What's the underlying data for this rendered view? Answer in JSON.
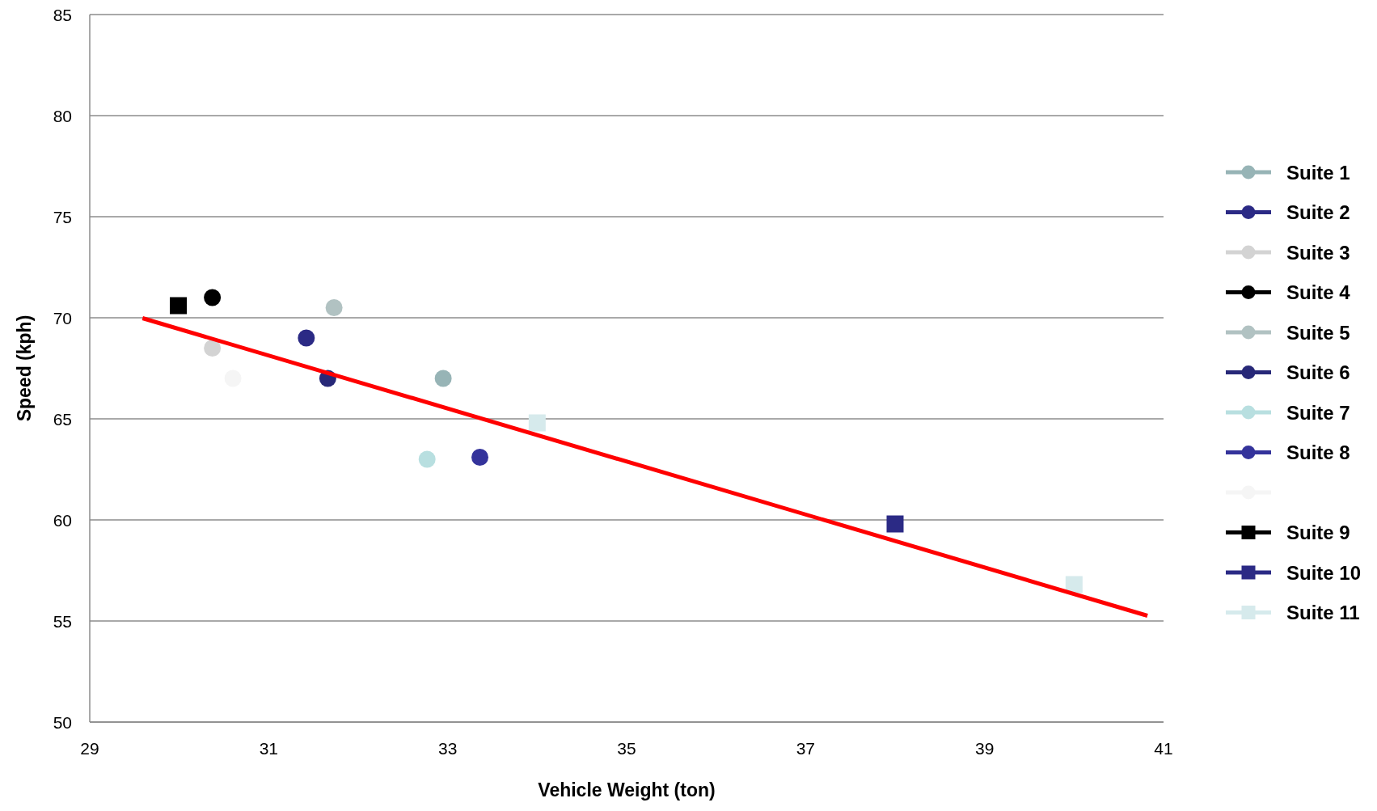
{
  "chart_data": {
    "type": "scatter",
    "xlabel": "Vehicle Weight (ton)",
    "ylabel": "Speed (kph)",
    "xlim": [
      29,
      41
    ],
    "xticks": [
      29,
      31,
      33,
      35,
      37,
      39,
      41
    ],
    "ylim": [
      50,
      85
    ],
    "yticks": [
      50,
      55,
      60,
      65,
      70,
      75,
      80,
      85
    ],
    "grid": "y",
    "legend": "right",
    "series": [
      {
        "name": "Suite 1",
        "color": "#97b4b6",
        "marker": "circle",
        "x": [
          32.95
        ],
        "values": [
          67.0
        ]
      },
      {
        "name": "Suite 2",
        "color": "#2b2a85",
        "marker": "circle",
        "x": [
          31.42
        ],
        "values": [
          69.0
        ]
      },
      {
        "name": "Suite 3",
        "color": "#d3d3d3",
        "marker": "circle",
        "x": [
          30.37
        ],
        "values": [
          68.5
        ]
      },
      {
        "name": "Suite 4",
        "color": "#000000",
        "marker": "circle",
        "x": [
          30.37
        ],
        "values": [
          71.0
        ]
      },
      {
        "name": "Suite 5",
        "color": "#b1c2c2",
        "marker": "circle",
        "x": [
          31.73
        ],
        "values": [
          70.5
        ]
      },
      {
        "name": "Suite 6",
        "color": "#272878",
        "marker": "circle",
        "x": [
          31.66
        ],
        "values": [
          67.0
        ]
      },
      {
        "name": "Suite 7",
        "color": "#b8dfe0",
        "marker": "circle",
        "x": [
          32.77
        ],
        "values": [
          63.0
        ]
      },
      {
        "name": "Suite 8",
        "color": "#34339b",
        "marker": "circle",
        "x": [
          33.36
        ],
        "values": [
          63.1
        ]
      },
      {
        "color": "#f5f5f5",
        "marker": "circle",
        "x": [
          30.6
        ],
        "values": [
          67.0
        ]
      },
      {
        "name": "Suite 9",
        "color": "#000000",
        "marker": "square",
        "x": [
          29.99
        ],
        "values": [
          70.6
        ]
      },
      {
        "name": "Suite 10",
        "color": "#2b2a85",
        "marker": "square",
        "x": [
          38.0
        ],
        "values": [
          59.8
        ]
      },
      {
        "name": "Suite 11",
        "color": "#d6eaec",
        "marker": "square",
        "x": [
          34.0,
          40.0
        ],
        "values": [
          64.8,
          56.8
        ]
      },
      {
        "type": "line",
        "color": "#ff0000",
        "marker": "none",
        "x": [
          29.59,
          40.82
        ],
        "values": [
          69.98,
          55.26
        ]
      }
    ]
  }
}
